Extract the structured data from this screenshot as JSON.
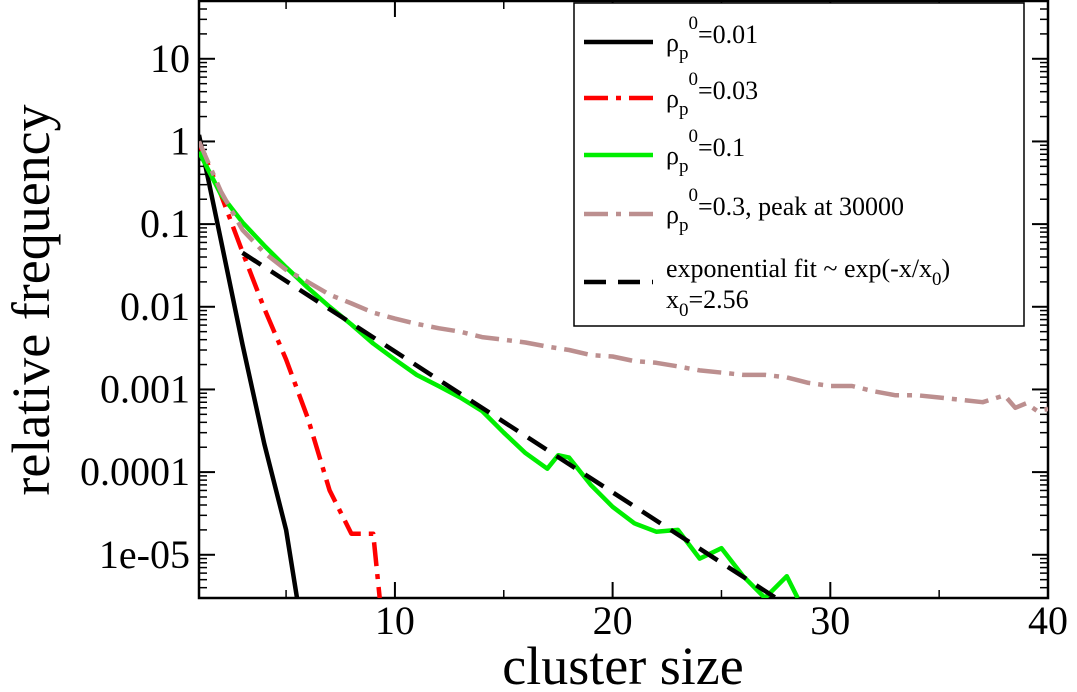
{
  "chart_data": {
    "type": "line",
    "title": "",
    "xlabel": "cluster size",
    "ylabel": "relative frequency",
    "xlim": [
      1,
      40
    ],
    "ylim": [
      3e-06,
      50
    ],
    "yscale": "log",
    "grid": false,
    "legend_position": "top-right",
    "x_ticks": [
      {
        "value": 10,
        "label": "10"
      },
      {
        "value": 20,
        "label": "20"
      },
      {
        "value": 30,
        "label": "30"
      },
      {
        "value": 40,
        "label": "40"
      }
    ],
    "y_ticks": [
      {
        "value": 10,
        "label": "10"
      },
      {
        "value": 1,
        "label": "1"
      },
      {
        "value": 0.1,
        "label": "0.1"
      },
      {
        "value": 0.01,
        "label": "0.01"
      },
      {
        "value": 0.001,
        "label": "0.001"
      },
      {
        "value": 0.0001,
        "label": "0.0001"
      },
      {
        "value": 1e-05,
        "label": "1e-05"
      }
    ],
    "series": [
      {
        "id": "rho001",
        "legend": {
          "parts": [
            {
              "t": "ρ"
            },
            {
              "t": "p",
              "sub": true
            },
            {
              "t": "0",
              "sup": true
            },
            {
              "t": "=0.01"
            }
          ]
        },
        "color": "#000000",
        "dash": "solid",
        "x": [
          1,
          2,
          3,
          4,
          5,
          5.5
        ],
        "y": [
          1.2,
          0.065,
          0.0035,
          0.00022,
          2e-05,
          3e-06
        ]
      },
      {
        "id": "rho003",
        "legend": {
          "parts": [
            {
              "t": "ρ"
            },
            {
              "t": "p",
              "sub": true
            },
            {
              "t": "0",
              "sup": true
            },
            {
              "t": "=0.03"
            }
          ]
        },
        "color": "#ff0000",
        "dash": "dashdot",
        "x": [
          1,
          2,
          3,
          4,
          5,
          6,
          7,
          8,
          9,
          9.3
        ],
        "y": [
          0.95,
          0.23,
          0.046,
          0.0095,
          0.0023,
          0.00045,
          6e-05,
          1.8e-05,
          1.8e-05,
          3e-06
        ]
      },
      {
        "id": "rho01",
        "legend": {
          "parts": [
            {
              "t": "ρ"
            },
            {
              "t": "p",
              "sub": true
            },
            {
              "t": "0",
              "sup": true
            },
            {
              "t": "=0.1"
            }
          ]
        },
        "color": "#00ee00",
        "dash": "solid",
        "x": [
          1,
          2,
          3,
          4,
          5,
          6,
          7,
          8,
          9,
          10,
          11,
          12,
          13,
          14,
          15,
          16,
          17,
          17.5,
          18,
          19,
          20,
          21,
          22,
          23,
          24,
          25,
          26,
          27,
          28,
          28.5
        ],
        "y": [
          0.75,
          0.23,
          0.105,
          0.055,
          0.03,
          0.017,
          0.01,
          0.0061,
          0.0036,
          0.0023,
          0.0015,
          0.0011,
          0.0008,
          0.00055,
          0.0003,
          0.00017,
          0.00011,
          0.00016,
          0.00015,
          7e-05,
          3.8e-05,
          2.4e-05,
          1.9e-05,
          2e-05,
          9e-06,
          1.2e-05,
          5.5e-06,
          3e-06,
          5.5e-06,
          3e-06
        ]
      },
      {
        "id": "rho03",
        "legend": {
          "parts": [
            {
              "t": "ρ"
            },
            {
              "t": "p",
              "sub": true
            },
            {
              "t": "0",
              "sup": true
            },
            {
              "t": "=0.3, peak at 30000"
            }
          ]
        },
        "color": "#bc8f8f",
        "dash": "dashdot",
        "x": [
          1,
          2,
          3,
          4,
          5,
          6,
          7,
          8,
          9,
          10,
          11,
          12,
          13,
          14,
          15,
          16,
          17,
          18,
          19,
          20,
          21,
          22,
          23,
          24,
          25,
          26,
          27,
          28,
          29,
          30,
          31,
          32,
          33,
          34,
          35,
          36,
          37,
          38,
          38.5,
          39,
          39.5,
          40
        ],
        "y": [
          1.0,
          0.25,
          0.085,
          0.045,
          0.028,
          0.02,
          0.014,
          0.011,
          0.0085,
          0.0072,
          0.0062,
          0.0055,
          0.005,
          0.0043,
          0.004,
          0.0037,
          0.0033,
          0.003,
          0.0026,
          0.0025,
          0.0022,
          0.0021,
          0.0019,
          0.0017,
          0.0016,
          0.0015,
          0.0015,
          0.0014,
          0.0012,
          0.0011,
          0.0011,
          0.00095,
          0.00085,
          0.00085,
          0.0008,
          0.00075,
          0.0007,
          0.00085,
          0.0006,
          0.00068,
          0.00055,
          0.00058
        ]
      },
      {
        "id": "fit",
        "legend": {
          "parts": [
            {
              "t": "exponential fit ~ exp(-x/x"
            },
            {
              "t": "0",
              "sub": true
            },
            {
              "t": ")"
            }
          ],
          "line2": [
            {
              "t": "x"
            },
            {
              "t": "0",
              "sub": true
            },
            {
              "t": "=2.56"
            }
          ]
        },
        "color": "#000000",
        "dash": "dashed",
        "x": [
          3,
          27.5
        ],
        "y": [
          0.045,
          3e-06
        ]
      }
    ]
  }
}
